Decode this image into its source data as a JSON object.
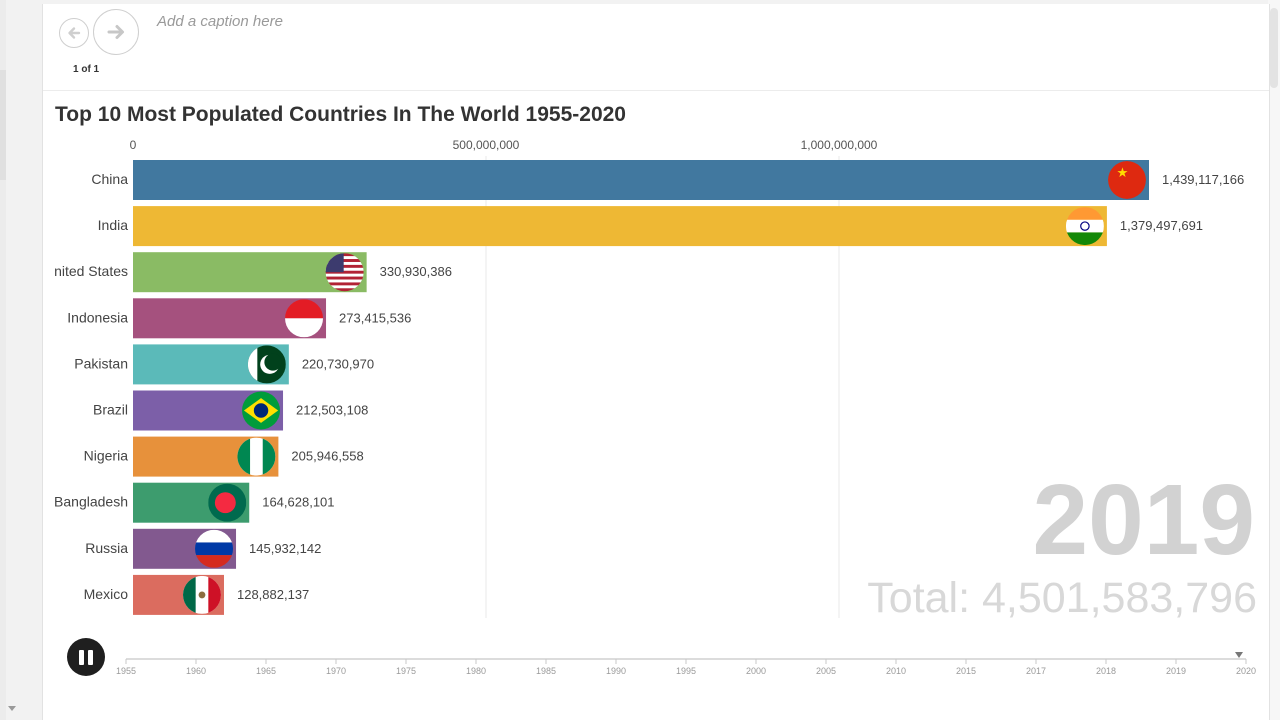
{
  "caption": {
    "placeholder": "Add a caption here"
  },
  "pagination": {
    "label": "1 of 1"
  },
  "chart_data": {
    "type": "bar",
    "orientation": "horizontal",
    "title": "Top 10 Most Populated Countries In The World 1955-2020",
    "categories": [
      "China",
      "India",
      "United States",
      "Indonesia",
      "Pakistan",
      "Brazil",
      "Nigeria",
      "Bangladesh",
      "Russia",
      "Mexico"
    ],
    "category_labels_shown": [
      "China",
      "India",
      "nited States",
      "Indonesia",
      "Pakistan",
      "Brazil",
      "Nigeria",
      "Bangladesh",
      "Russia",
      "Mexico"
    ],
    "values": [
      1439117166,
      1379497691,
      330930386,
      273415536,
      220730970,
      212503108,
      205946558,
      164628101,
      145932142,
      128882137
    ],
    "value_labels": [
      "1,439,117,166",
      "1,379,497,691",
      "330,930,386",
      "273,415,536",
      "220,730,970",
      "212,503,108",
      "205,946,558",
      "164,628,101",
      "145,932,142",
      "128,882,137"
    ],
    "colors": [
      "#41789f",
      "#eeb834",
      "#8abb64",
      "#a5517e",
      "#5bbab9",
      "#7c5fa8",
      "#e7913b",
      "#3d9c6e",
      "#82598f",
      "#db6c5f"
    ],
    "flags": [
      "china-flag",
      "india-flag",
      "usa-flag",
      "indonesia-flag",
      "pakistan-flag",
      "brazil-flag",
      "nigeria-flag",
      "bangladesh-flag",
      "russia-flag",
      "mexico-flag"
    ],
    "xlim": [
      0,
      1439117166
    ],
    "ticks": [
      0,
      500000000,
      1000000000
    ],
    "tick_labels": [
      "0",
      "500,000,000",
      "1,000,000,000"
    ],
    "gridlines": true,
    "year": "2019",
    "total_label": "Total: 4,501,583,796"
  },
  "timeline": {
    "years": [
      "1955",
      "1960",
      "1965",
      "1970",
      "1975",
      "1980",
      "1985",
      "1990",
      "1995",
      "2000",
      "2005",
      "2010",
      "2015",
      "2017",
      "2018",
      "2019",
      "2020"
    ],
    "current": "2019",
    "state": "playing",
    "accent": "#1f1f1f"
  }
}
